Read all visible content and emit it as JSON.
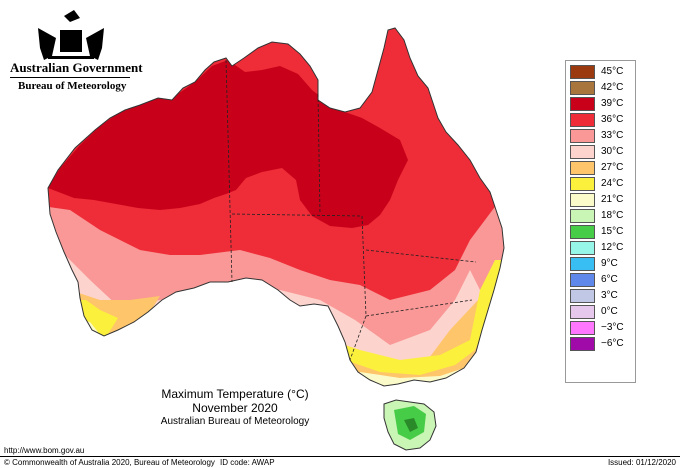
{
  "header": {
    "gov_name": "Australian Government",
    "bureau_name": "Bureau of Meteorology"
  },
  "legend": {
    "items": [
      {
        "label": "45°C",
        "color": "#9a3a0e"
      },
      {
        "label": "42°C",
        "color": "#a8763c"
      },
      {
        "label": "39°C",
        "color": "#c8001a"
      },
      {
        "label": "36°C",
        "color": "#ee2d38"
      },
      {
        "label": "33°C",
        "color": "#f99896"
      },
      {
        "label": "30°C",
        "color": "#fdd3ce"
      },
      {
        "label": "27°C",
        "color": "#fec56a"
      },
      {
        "label": "24°C",
        "color": "#fbf03c"
      },
      {
        "label": "21°C",
        "color": "#fbfbc9"
      },
      {
        "label": "18°C",
        "color": "#c9f5b5"
      },
      {
        "label": "15°C",
        "color": "#47cc47"
      },
      {
        "label": "12°C",
        "color": "#96f6e8"
      },
      {
        "label": "9°C",
        "color": "#38bef2"
      },
      {
        "label": "6°C",
        "color": "#5e88ea"
      },
      {
        "label": "3°C",
        "color": "#c0c8e6"
      },
      {
        "label": "0°C",
        "color": "#e6c8ec"
      },
      {
        "label": "−3°C",
        "color": "#ff77ff"
      },
      {
        "label": "−6°C",
        "color": "#a00aa8"
      }
    ]
  },
  "title": {
    "line1": "Maximum Temperature (°C)",
    "line2": "November 2020",
    "line3": "Australian Bureau of Meteorology"
  },
  "footer": {
    "url": "http://www.bom.gov.au",
    "copyright": "© Commonwealth of Australia 2020, Bureau of Meteorology",
    "id_code": "ID code: AWAP",
    "issued": "Issued: 01/12/2020"
  }
}
